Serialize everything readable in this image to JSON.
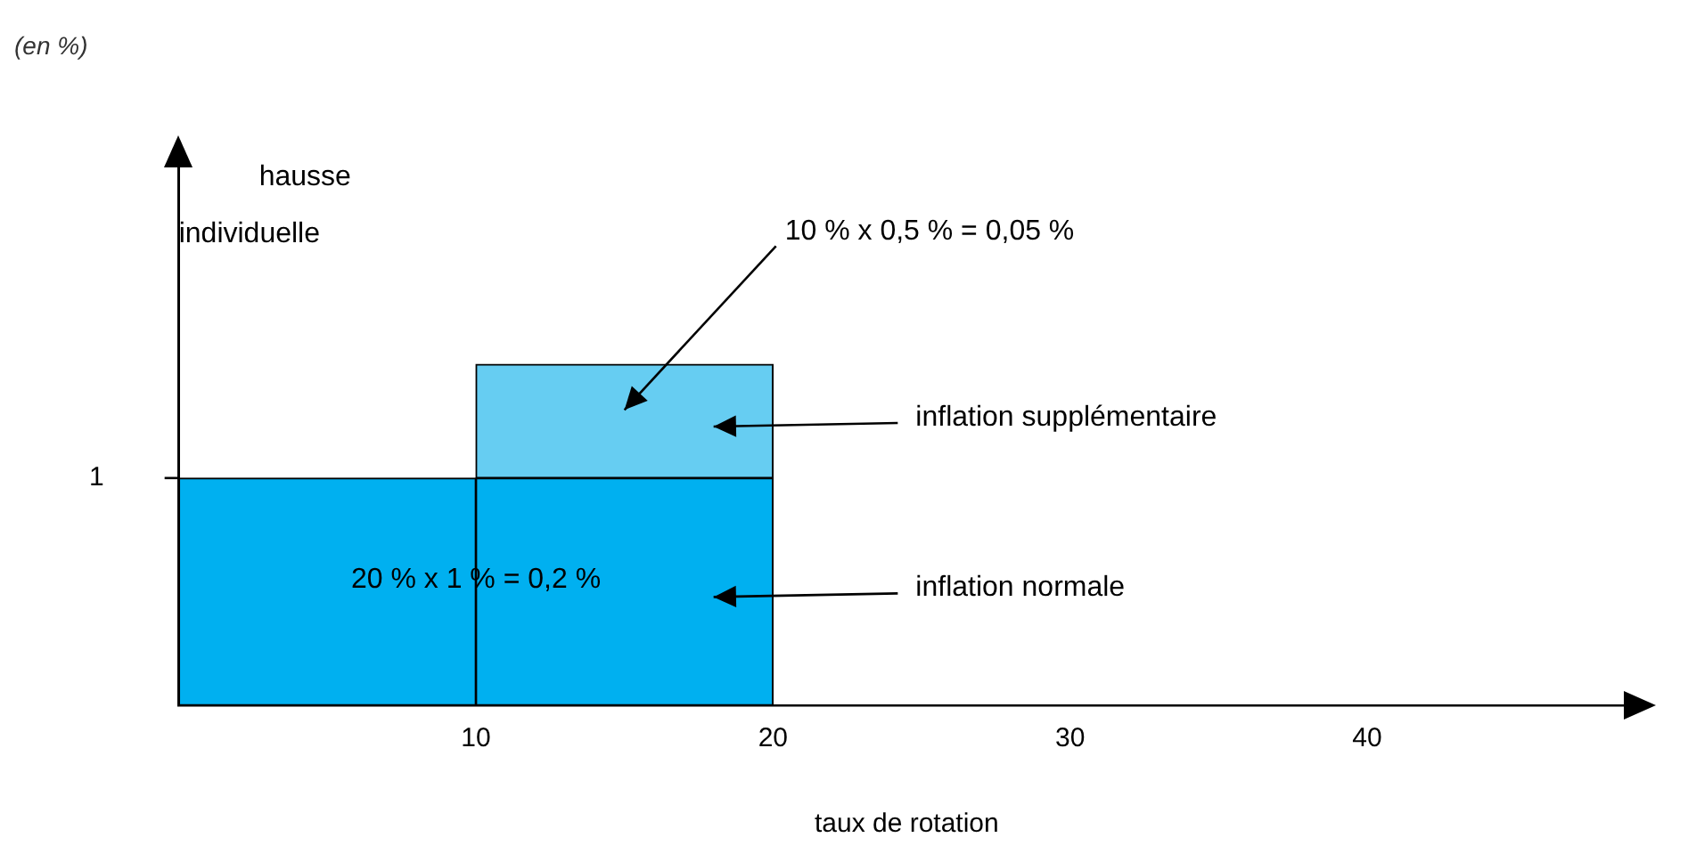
{
  "chart_data": {
    "type": "bar",
    "title": "(en %)",
    "ylabel": "hausse individuelle",
    "xlabel": "taux de rotation",
    "x": [
      5,
      15
    ],
    "stacked": true,
    "series": [
      {
        "name": "inflation normale",
        "color": "#00b0f0",
        "values": [
          1,
          1
        ]
      },
      {
        "name": "inflation supplémentaire",
        "color": "#66cdf2",
        "values": [
          null,
          0.5
        ]
      }
    ],
    "xlim": [
      0,
      49
    ],
    "xticks": [
      10,
      20,
      30,
      40
    ],
    "ylim": [
      0,
      2.4
    ],
    "yticks": [
      1
    ],
    "grid": false,
    "legend": false,
    "annotations": [
      {
        "text": "20 % x 1 % = 0,2 %",
        "x": 10,
        "y": 0.55
      },
      "10 % x 0,5 % = 0,05 %"
    ]
  }
}
